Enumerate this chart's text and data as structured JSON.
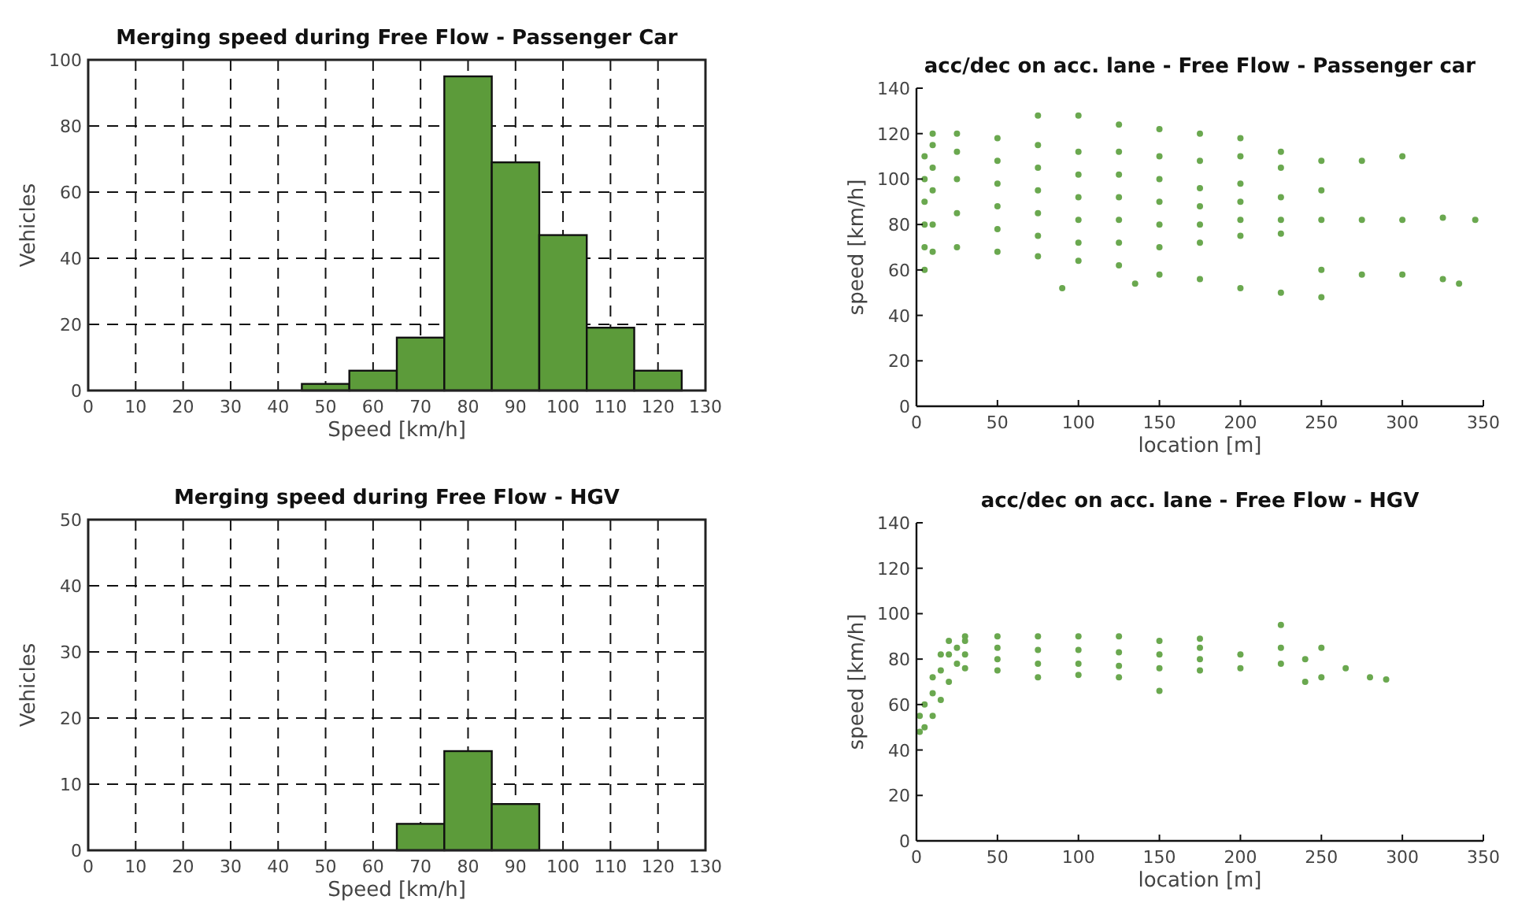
{
  "chart_data": [
    {
      "type": "histogram",
      "title": "Merging speed during Free Flow - Passenger Car",
      "xlabel": "Speed [km/h]",
      "ylabel": "Vehicles",
      "bins": [
        45,
        55,
        65,
        75,
        85,
        95,
        105,
        115,
        125
      ],
      "values": [
        2,
        6,
        16,
        95,
        69,
        47,
        19,
        6
      ],
      "color": "#5c9b3a",
      "xlim": [
        0,
        130
      ],
      "xticks": [
        0,
        10,
        20,
        30,
        40,
        50,
        60,
        70,
        80,
        90,
        100,
        110,
        120,
        130
      ],
      "ylim": [
        0,
        100
      ],
      "yticks": [
        0,
        20,
        40,
        60,
        80,
        100
      ],
      "grid": true
    },
    {
      "type": "scatter",
      "title": "acc/dec on acc. lane - Free Flow - Passenger car",
      "xlabel": "location [m]",
      "ylabel": "speed [km/h]",
      "marker": "circle",
      "xlim": [
        0,
        350
      ],
      "xticks": [
        0,
        50,
        100,
        150,
        200,
        250,
        300,
        350
      ],
      "ylim": [
        0,
        140
      ],
      "yticks": [
        0,
        20,
        40,
        60,
        80,
        100,
        120,
        140
      ],
      "series": [
        {
          "color": "#6aa84f",
          "x": [
            5,
            5,
            5,
            5,
            5,
            5,
            10,
            10,
            10,
            10,
            10,
            10,
            25,
            25,
            25,
            25,
            25,
            50,
            50,
            50,
            50,
            50,
            50,
            75,
            75,
            75,
            75,
            75,
            75,
            75,
            100,
            100,
            100,
            100,
            100,
            100,
            100,
            125,
            125,
            125,
            125,
            125,
            125,
            125,
            150,
            150,
            150,
            150,
            150,
            150,
            150,
            175,
            175,
            175,
            175,
            175,
            175,
            175,
            200,
            200,
            200,
            200,
            200,
            200,
            200,
            225,
            225,
            225,
            225,
            225,
            225,
            250,
            250,
            250,
            250,
            250,
            275,
            275,
            275,
            300,
            300,
            300,
            325,
            325,
            335,
            345,
            90,
            135
          ],
          "values": [
            60,
            70,
            80,
            90,
            100,
            110,
            68,
            80,
            95,
            105,
            115,
            120,
            70,
            85,
            100,
            112,
            120,
            68,
            78,
            88,
            98,
            108,
            118,
            66,
            75,
            85,
            95,
            105,
            115,
            128,
            64,
            72,
            82,
            92,
            102,
            112,
            128,
            62,
            72,
            82,
            92,
            102,
            112,
            124,
            58,
            70,
            80,
            90,
            100,
            110,
            122,
            56,
            72,
            80,
            88,
            96,
            108,
            120,
            52,
            75,
            82,
            90,
            98,
            110,
            118,
            50,
            76,
            82,
            92,
            105,
            112,
            48,
            60,
            82,
            95,
            108,
            58,
            82,
            108,
            58,
            82,
            110,
            56,
            83,
            54,
            82,
            52,
            54
          ]
        }
      ]
    },
    {
      "type": "histogram",
      "title": "Merging speed during Free Flow - HGV",
      "xlabel": "Speed [km/h]",
      "ylabel": "Vehicles",
      "bins": [
        65,
        75,
        85,
        95
      ],
      "values": [
        4,
        15,
        7
      ],
      "color": "#5c9b3a",
      "xlim": [
        0,
        130
      ],
      "xticks": [
        0,
        10,
        20,
        30,
        40,
        50,
        60,
        70,
        80,
        90,
        100,
        110,
        120,
        130
      ],
      "ylim": [
        0,
        50
      ],
      "yticks": [
        0,
        10,
        20,
        30,
        40,
        50
      ],
      "grid": true
    },
    {
      "type": "scatter",
      "title": "acc/dec on acc. lane - Free Flow - HGV",
      "xlabel": "location [m]",
      "ylabel": "speed [km/h]",
      "marker": "circle",
      "xlim": [
        0,
        350
      ],
      "xticks": [
        0,
        50,
        100,
        150,
        200,
        250,
        300,
        350
      ],
      "ylim": [
        0,
        140
      ],
      "yticks": [
        0,
        20,
        40,
        60,
        80,
        100,
        120,
        140
      ],
      "series": [
        {
          "color": "#6aa84f",
          "x": [
            2,
            2,
            5,
            5,
            10,
            10,
            10,
            15,
            15,
            15,
            20,
            20,
            20,
            25,
            25,
            30,
            30,
            30,
            30,
            50,
            50,
            50,
            50,
            75,
            75,
            75,
            75,
            100,
            100,
            100,
            100,
            125,
            125,
            125,
            125,
            150,
            150,
            150,
            150,
            175,
            175,
            175,
            175,
            200,
            200,
            225,
            225,
            225,
            240,
            240,
            250,
            250,
            265,
            280,
            290
          ],
          "values": [
            48,
            55,
            50,
            60,
            55,
            65,
            72,
            62,
            75,
            82,
            70,
            82,
            88,
            78,
            85,
            76,
            82,
            88,
            90,
            75,
            80,
            85,
            90,
            72,
            78,
            84,
            90,
            73,
            78,
            84,
            90,
            72,
            77,
            83,
            90,
            66,
            76,
            82,
            88,
            75,
            80,
            85,
            89,
            76,
            82,
            78,
            85,
            95,
            70,
            80,
            72,
            85,
            76,
            72,
            71
          ]
        }
      ]
    }
  ]
}
